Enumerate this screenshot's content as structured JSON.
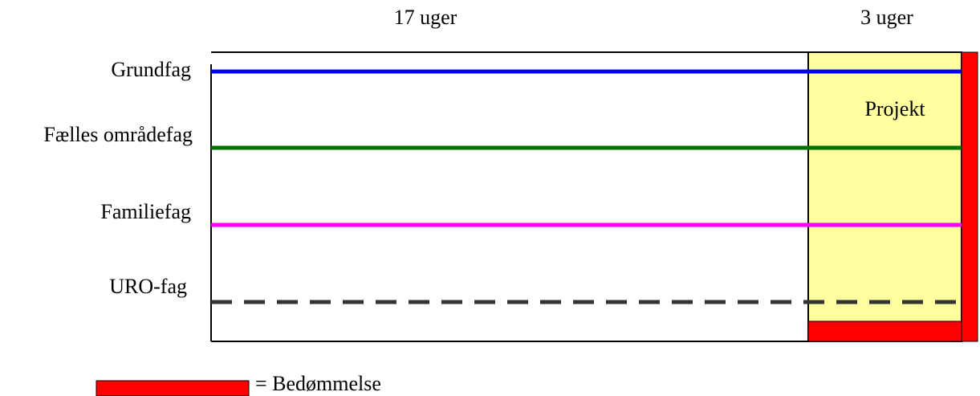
{
  "header": {
    "left_label": "17 uger",
    "right_label": "3 uger"
  },
  "rows": [
    {
      "label": "Grundfag"
    },
    {
      "label": "Fælles områdefag"
    },
    {
      "label": "Familiefag"
    },
    {
      "label": "URO-fag"
    }
  ],
  "project": {
    "label": "Projekt"
  },
  "legend": {
    "label": "= Bedømmelse"
  }
}
